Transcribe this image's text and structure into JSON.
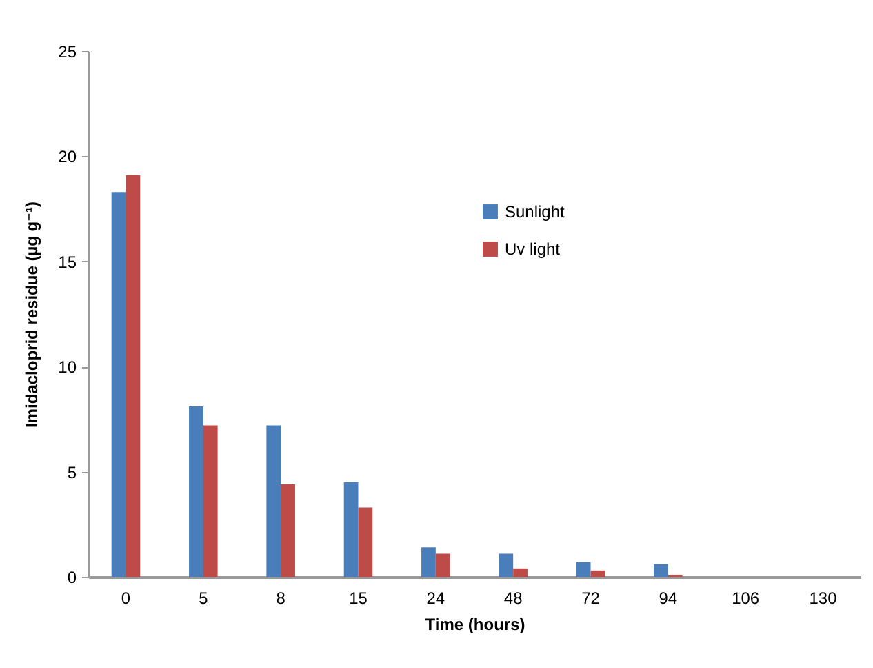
{
  "chart_data": {
    "type": "bar",
    "xlabel": "Time (hours)",
    "ylabel": "Imidacloprid residue (µg g⁻¹)",
    "categories": [
      "0",
      "5",
      "8",
      "15",
      "24",
      "48",
      "72",
      "94",
      "106",
      "130"
    ],
    "series": [
      {
        "name": "Sunlight",
        "color": "#4a7ebb",
        "values": [
          18.3,
          8.1,
          7.2,
          4.5,
          1.4,
          1.1,
          0.7,
          0.6,
          0,
          0
        ]
      },
      {
        "name": "Uv light",
        "color": "#be4b48",
        "values": [
          19.1,
          7.2,
          4.4,
          3.3,
          1.1,
          0.4,
          0.3,
          0.1,
          0,
          0
        ]
      }
    ],
    "ylim": [
      0,
      25
    ],
    "yticks": [
      0,
      5,
      10,
      15,
      20,
      25
    ],
    "grid": false,
    "legend": "top right"
  }
}
